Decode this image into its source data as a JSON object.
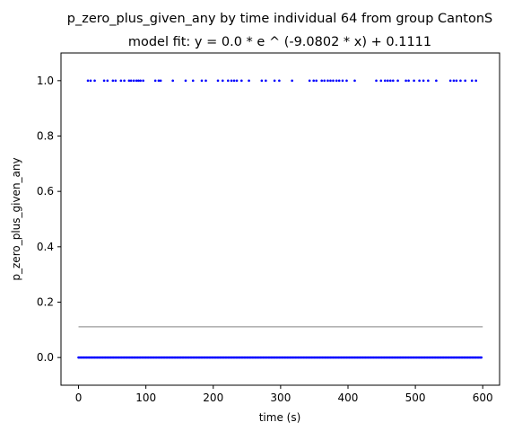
{
  "chart_data": {
    "type": "scatter",
    "title": "p_zero_plus_given_any by time individual 64 from group CantonS",
    "subtitle": "model fit: y = 0.0 * e ^ (-9.0802 * x) + 0.1111",
    "xlabel": "time (s)",
    "ylabel": "p_zero_plus_given_any",
    "xlim": [
      -26,
      625
    ],
    "ylim": [
      -0.1,
      1.1
    ],
    "xticks": [
      0,
      100,
      200,
      300,
      400,
      500,
      600
    ],
    "yticks": [
      0.0,
      0.2,
      0.4,
      0.6,
      0.8,
      1.0
    ],
    "ytick_labels": [
      "0.0",
      "0.2",
      "0.4",
      "0.6",
      "0.8",
      "1.0"
    ],
    "grid": false,
    "legend": "none",
    "point_color": "#0000ff",
    "fit_line_color": "#aaaaaa",
    "series": [
      {
        "kind": "points",
        "y_value": 1.0,
        "x": [
          14,
          18,
          24,
          38,
          43,
          51,
          55,
          63,
          68,
          75,
          78,
          82,
          86,
          89,
          92,
          96,
          114,
          119,
          122,
          140,
          159,
          170,
          183,
          189,
          207,
          214,
          222,
          227,
          231,
          235,
          242,
          253,
          272,
          278,
          291,
          298,
          317,
          343,
          349,
          353,
          361,
          365,
          370,
          374,
          378,
          383,
          387,
          392,
          398,
          410,
          442,
          449,
          455,
          459,
          463,
          467,
          474,
          486,
          490,
          498,
          506,
          512,
          519,
          531,
          552,
          557,
          561,
          567,
          574,
          584,
          590
        ]
      },
      {
        "kind": "points",
        "y_value": 0.0,
        "x_start": 0,
        "x_end": 598,
        "x_step": 2
      },
      {
        "kind": "fit-line",
        "x_range": [
          0,
          600
        ],
        "y_value": 0.1111
      }
    ]
  }
}
